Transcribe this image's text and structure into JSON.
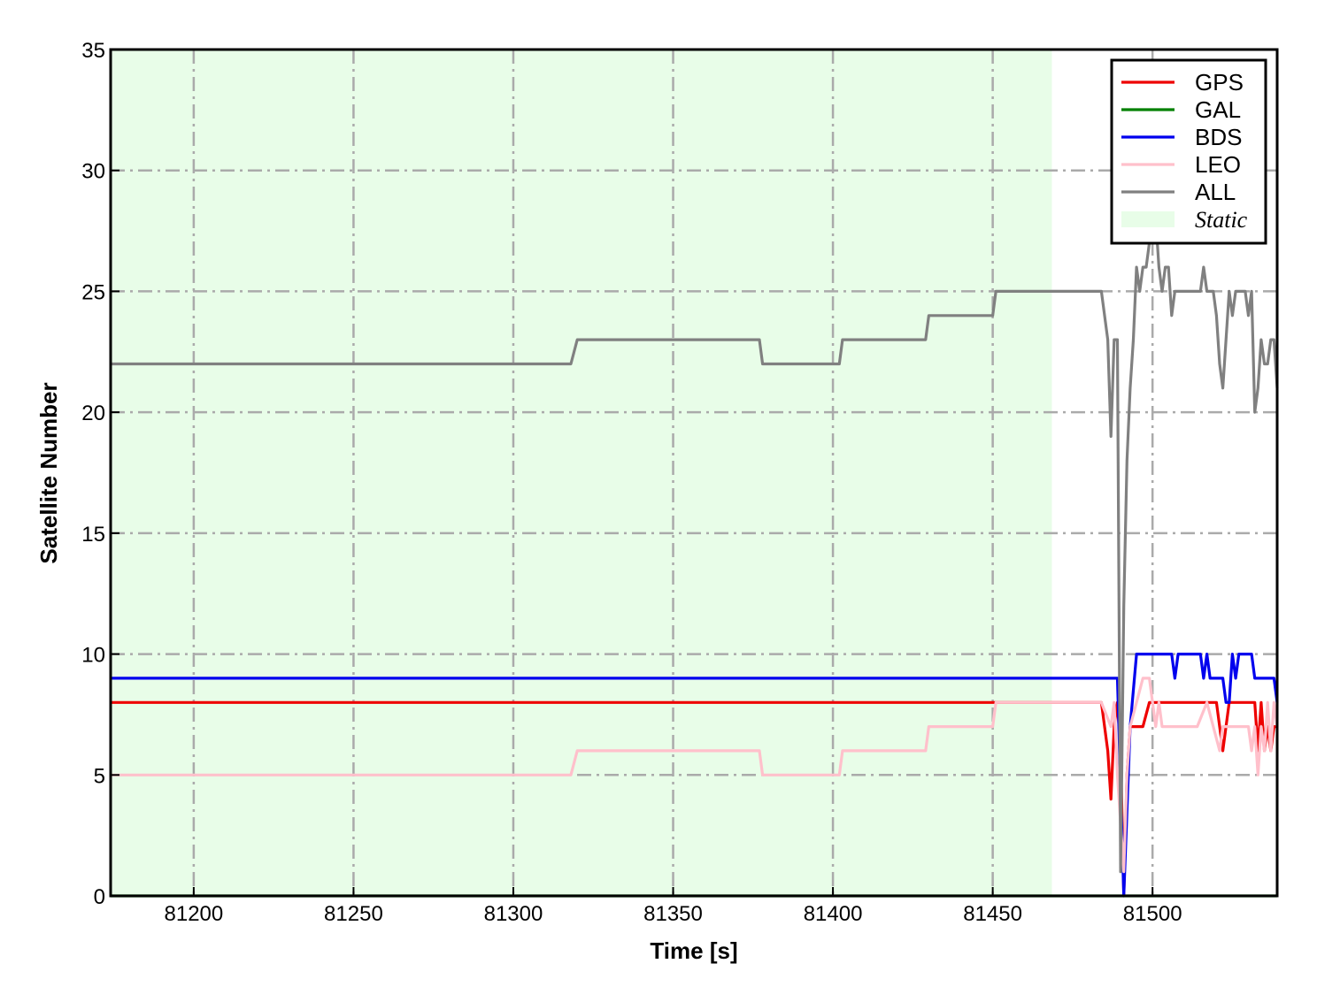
{
  "chart_data": {
    "type": "line",
    "title": "",
    "xlabel": "Time [s]",
    "ylabel": "Satellite Number",
    "xlim": [
      81174,
      81539
    ],
    "ylim": [
      0,
      35
    ],
    "xticks": [
      81200,
      81250,
      81300,
      81350,
      81400,
      81450,
      81500
    ],
    "yticks": [
      0,
      5,
      10,
      15,
      20,
      25,
      30,
      35
    ],
    "grid": true,
    "legend_placement": "top-right",
    "shaded_regions": [
      {
        "name": "Static",
        "x": [
          81174,
          81468.5
        ],
        "color": "#e8fde8"
      }
    ],
    "series": [
      {
        "name": "GPS",
        "color": "#ee0000",
        "x": [
          81174,
          81484,
          81486,
          81487,
          81488,
          81489,
          81490,
          81491,
          81492,
          81493,
          81496,
          81497,
          81499,
          81520,
          81521,
          81522,
          81523,
          81524,
          81532,
          81533,
          81534,
          81535,
          81536,
          81537,
          81538,
          81539
        ],
        "y": [
          8,
          8,
          6,
          4,
          7,
          8,
          6,
          0,
          5,
          7,
          7,
          7,
          8,
          8,
          7,
          6,
          7,
          8,
          8,
          6,
          8,
          6,
          7,
          6,
          7,
          7
        ]
      },
      {
        "name": "GAL",
        "color": "#008000",
        "x": [
          81174,
          81539
        ],
        "y": [
          0,
          0
        ]
      },
      {
        "name": "BDS",
        "color": "#0000ee",
        "x": [
          81174,
          81489,
          81491,
          81493,
          81495,
          81506,
          81507,
          81508,
          81515,
          81516,
          81517,
          81518,
          81522,
          81523,
          81524,
          81525,
          81526,
          81527,
          81531,
          81532,
          81538,
          81539
        ],
        "y": [
          9,
          9,
          0,
          7,
          10,
          10,
          9,
          10,
          10,
          9,
          10,
          9,
          9,
          8,
          8,
          10,
          9,
          10,
          10,
          9,
          9,
          8
        ]
      },
      {
        "name": "LEO",
        "color": "#ffc0cb",
        "x": [
          81174,
          81318,
          81320,
          81377,
          81378,
          81402,
          81403,
          81429,
          81430,
          81450,
          81451,
          81484,
          81487,
          81488,
          81489,
          81491,
          81492,
          81493,
          81495,
          81497,
          81499,
          81501,
          81502,
          81503,
          81514,
          81517,
          81519,
          81521,
          81522,
          81530,
          81531,
          81532,
          81533,
          81534,
          81535,
          81536,
          81537,
          81538,
          81539
        ],
        "y": [
          5,
          5,
          6,
          6,
          5,
          5,
          6,
          6,
          7,
          7,
          8,
          8,
          7,
          8,
          5,
          1,
          5,
          7,
          8,
          9,
          9,
          7,
          8,
          7,
          7,
          8,
          7,
          6,
          7,
          7,
          6,
          7,
          5,
          7,
          6,
          8,
          6,
          8,
          7
        ]
      },
      {
        "name": "ALL",
        "color": "#808080",
        "x": [
          81174,
          81318,
          81320,
          81377,
          81378,
          81402,
          81403,
          81429,
          81430,
          81450,
          81451,
          81484,
          81486,
          81487,
          81488,
          81489,
          81490,
          81491,
          81492,
          81493,
          81494,
          81495,
          81496,
          81497,
          81498,
          81499,
          81500,
          81501,
          81502,
          81503,
          81504,
          81505,
          81506,
          81507,
          81515,
          81516,
          81517,
          81519,
          81520,
          81521,
          81522,
          81523,
          81524,
          81525,
          81526,
          81527,
          81529,
          81530,
          81531,
          81532,
          81533,
          81534,
          81535,
          81536,
          81537,
          81538,
          81539
        ],
        "y": [
          22,
          22,
          23,
          23,
          22,
          22,
          23,
          23,
          24,
          24,
          25,
          25,
          23,
          19,
          23,
          23,
          1,
          12,
          18,
          21,
          23,
          26,
          25,
          26,
          26,
          27,
          28,
          28,
          26,
          25,
          26,
          26,
          24,
          25,
          25,
          26,
          25,
          25,
          24,
          22,
          21,
          23,
          25,
          24,
          25,
          25,
          25,
          24,
          25,
          20,
          21,
          23,
          22,
          22,
          23,
          23,
          21
        ]
      }
    ]
  }
}
